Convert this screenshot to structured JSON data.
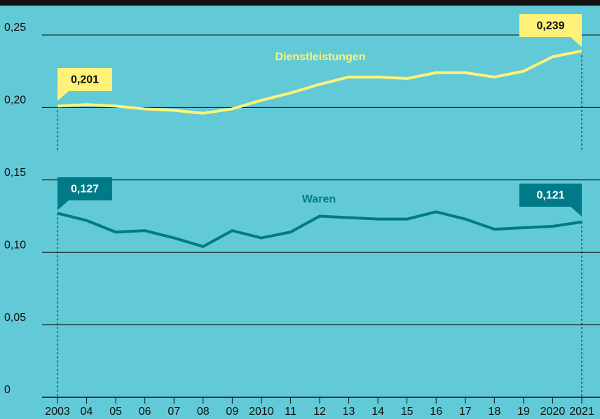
{
  "chart_data": {
    "type": "line",
    "categories": [
      "2003",
      "04",
      "05",
      "06",
      "07",
      "08",
      "09",
      "2010",
      "11",
      "12",
      "13",
      "14",
      "15",
      "16",
      "17",
      "18",
      "19",
      "2020",
      "2021"
    ],
    "series": [
      {
        "name": "Dienstleistungen",
        "color": "#fff27a",
        "values": [
          0.201,
          0.202,
          0.201,
          0.199,
          0.198,
          0.196,
          0.199,
          0.205,
          0.21,
          0.216,
          0.221,
          0.221,
          0.22,
          0.224,
          0.224,
          0.221,
          0.225,
          0.235,
          0.239
        ],
        "value_labels": [
          "0,201",
          null,
          null,
          null,
          null,
          null,
          null,
          null,
          null,
          null,
          null,
          null,
          null,
          null,
          null,
          null,
          null,
          null,
          "0,239"
        ]
      },
      {
        "name": "Waren",
        "color": "#007a87",
        "values": [
          0.127,
          0.122,
          0.114,
          0.115,
          0.11,
          0.104,
          0.115,
          0.11,
          0.114,
          0.125,
          0.124,
          0.123,
          0.123,
          0.128,
          0.123,
          0.116,
          0.117,
          0.118,
          0.121
        ],
        "value_labels": [
          "0,127",
          null,
          null,
          null,
          null,
          null,
          null,
          null,
          null,
          null,
          null,
          null,
          null,
          null,
          null,
          null,
          null,
          null,
          "0,121"
        ]
      }
    ],
    "ylim": [
      0,
      0.25
    ],
    "yticks": [
      0,
      {
        "value": 0.05,
        "label": "0,05"
      },
      {
        "value": 0.1,
        "label": "0,10"
      },
      {
        "value": 0.15,
        "label": "0,15"
      },
      {
        "value": 0.2,
        "label": "0,20"
      },
      {
        "value": 0.25,
        "label": "0,25"
      }
    ],
    "grid": true
  }
}
